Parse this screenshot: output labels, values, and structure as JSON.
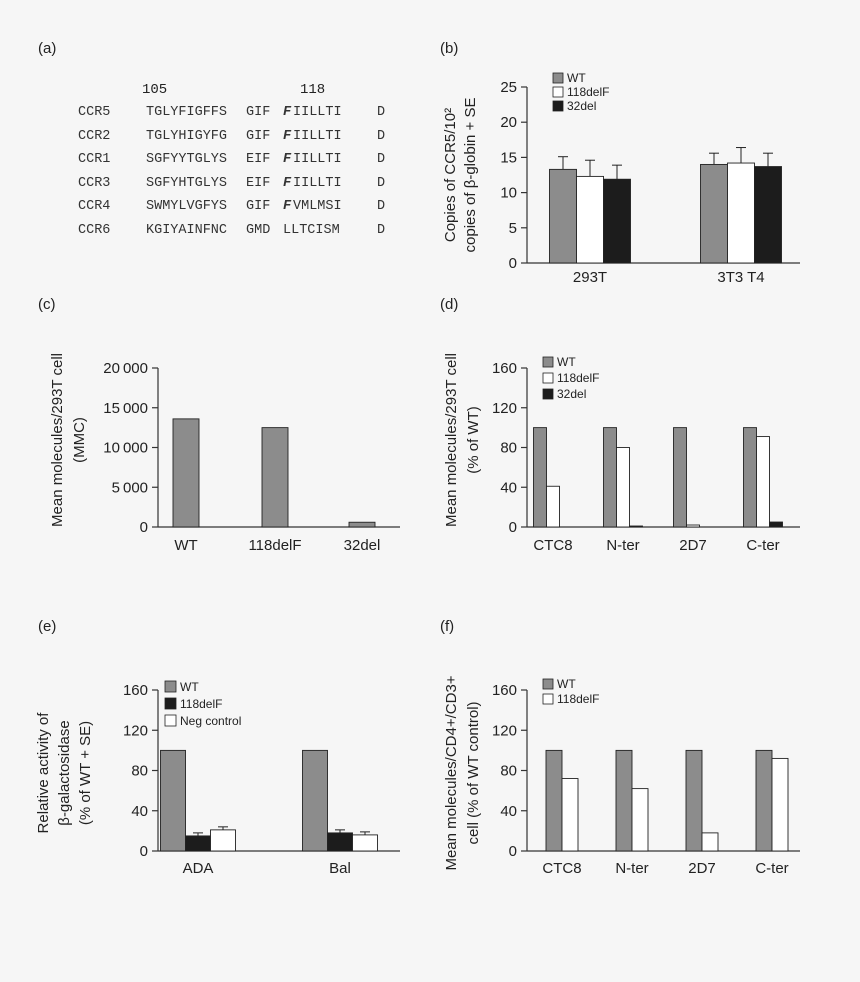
{
  "panel_a": {
    "letter": "(a)",
    "pos_start": "105",
    "pos_mark": "118",
    "rows": [
      {
        "name": "CCR5",
        "seg1": "TGLYFIGFFS",
        "seg2": "GIF",
        "key": "F",
        "seg3": "IILLTI",
        "tail": "D"
      },
      {
        "name": "CCR2",
        "seg1": "TGLYHIGYFG",
        "seg2": "GIF",
        "key": "F",
        "seg3": "IILLTI",
        "tail": "D"
      },
      {
        "name": "CCR1",
        "seg1": "SGFYYTGLYS",
        "seg2": "EIF",
        "key": "F",
        "seg3": "IILLTI",
        "tail": "D"
      },
      {
        "name": "CCR3",
        "seg1": "SGFYHTGLYS",
        "seg2": "EIF",
        "key": "F",
        "seg3": "IILLTI",
        "tail": "D"
      },
      {
        "name": "CCR4",
        "seg1": "SWMYLVGFYS",
        "seg2": "GIF",
        "key": "F",
        "seg3": "VMLMSI",
        "tail": "D"
      },
      {
        "name": "CCR6",
        "seg1": "KGIYAINFNC",
        "seg2": "GMD",
        "key": "L",
        "seg3": "LTCISM",
        "tail": "D"
      }
    ]
  },
  "colors": {
    "gray": "#8c8c8c",
    "white": "#ffffff",
    "black": "#1c1c1c",
    "axis": "#333333"
  },
  "chart_data": [
    {
      "id": "b",
      "panel": "(b)",
      "type": "bar",
      "ylabel_lines": [
        "Copies of CCR5/10² ",
        "copies of β-globin + SE"
      ],
      "ylim": [
        0,
        25
      ],
      "yticks": [
        0,
        5,
        10,
        15,
        20,
        25
      ],
      "categories": [
        "293T",
        "3T3 T4"
      ],
      "series": [
        {
          "name": "WT",
          "color": "gray",
          "values": [
            13.3,
            14.0
          ],
          "errors": [
            1.8,
            1.6
          ]
        },
        {
          "name": "118delF",
          "color": "white",
          "values": [
            12.3,
            14.2
          ],
          "errors": [
            2.3,
            2.2
          ]
        },
        {
          "name": "32del",
          "color": "black",
          "values": [
            11.9,
            13.7
          ],
          "errors": [
            2.0,
            1.9
          ]
        }
      ]
    },
    {
      "id": "c",
      "panel": "(c)",
      "type": "bar",
      "ylabel_lines": [
        "Mean molecules/293T cell",
        "(MMC)"
      ],
      "ylim": [
        0,
        20000
      ],
      "yticks": [
        0,
        5000,
        10000,
        15000,
        20000
      ],
      "categories": [
        "WT",
        "118delF",
        "32del"
      ],
      "series": [
        {
          "name": "MMC",
          "color": "gray",
          "values": [
            13600,
            12500,
            600
          ]
        }
      ]
    },
    {
      "id": "d",
      "panel": "(d)",
      "type": "bar",
      "ylabel_lines": [
        "Mean molecules/293T cell",
        "(% of WT)"
      ],
      "ylim": [
        0,
        160
      ],
      "yticks": [
        0,
        40,
        80,
        120,
        160
      ],
      "categories": [
        "CTC8",
        "N-ter",
        "2D7",
        "C-ter"
      ],
      "series": [
        {
          "name": "WT",
          "color": "gray",
          "values": [
            100,
            100,
            100,
            100
          ]
        },
        {
          "name": "118delF",
          "color": "white",
          "values": [
            41,
            80,
            2,
            91
          ]
        },
        {
          "name": "32del",
          "color": "black",
          "values": [
            0,
            1,
            0,
            5
          ]
        }
      ]
    },
    {
      "id": "e",
      "panel": "(e)",
      "type": "bar",
      "ylabel_lines": [
        "Relative activity of",
        "β-galactosidase",
        "(% of WT + SE)"
      ],
      "ylim": [
        0,
        160
      ],
      "yticks": [
        0,
        40,
        80,
        120,
        160
      ],
      "categories": [
        "ADA",
        "Bal"
      ],
      "series": [
        {
          "name": "WT",
          "color": "gray",
          "values": [
            100,
            100
          ],
          "errors": [
            0,
            0
          ]
        },
        {
          "name": "118delF",
          "color": "black",
          "values": [
            15,
            18
          ],
          "errors": [
            3,
            3
          ]
        },
        {
          "name": "Neg control",
          "color": "white",
          "values": [
            21,
            16
          ],
          "errors": [
            3,
            3
          ]
        }
      ]
    },
    {
      "id": "f",
      "panel": "(f)",
      "type": "bar",
      "ylabel_lines": [
        "Mean molecules/CD4+/CD3+",
        "cell (% of WT control)"
      ],
      "ylim": [
        0,
        160
      ],
      "yticks": [
        0,
        40,
        80,
        120,
        160
      ],
      "categories": [
        "CTC8",
        "N-ter",
        "2D7",
        "C-ter"
      ],
      "series": [
        {
          "name": "WT",
          "color": "gray",
          "values": [
            100,
            100,
            100,
            100
          ]
        },
        {
          "name": "118delF",
          "color": "white",
          "values": [
            72,
            62,
            18,
            92
          ]
        }
      ]
    }
  ]
}
